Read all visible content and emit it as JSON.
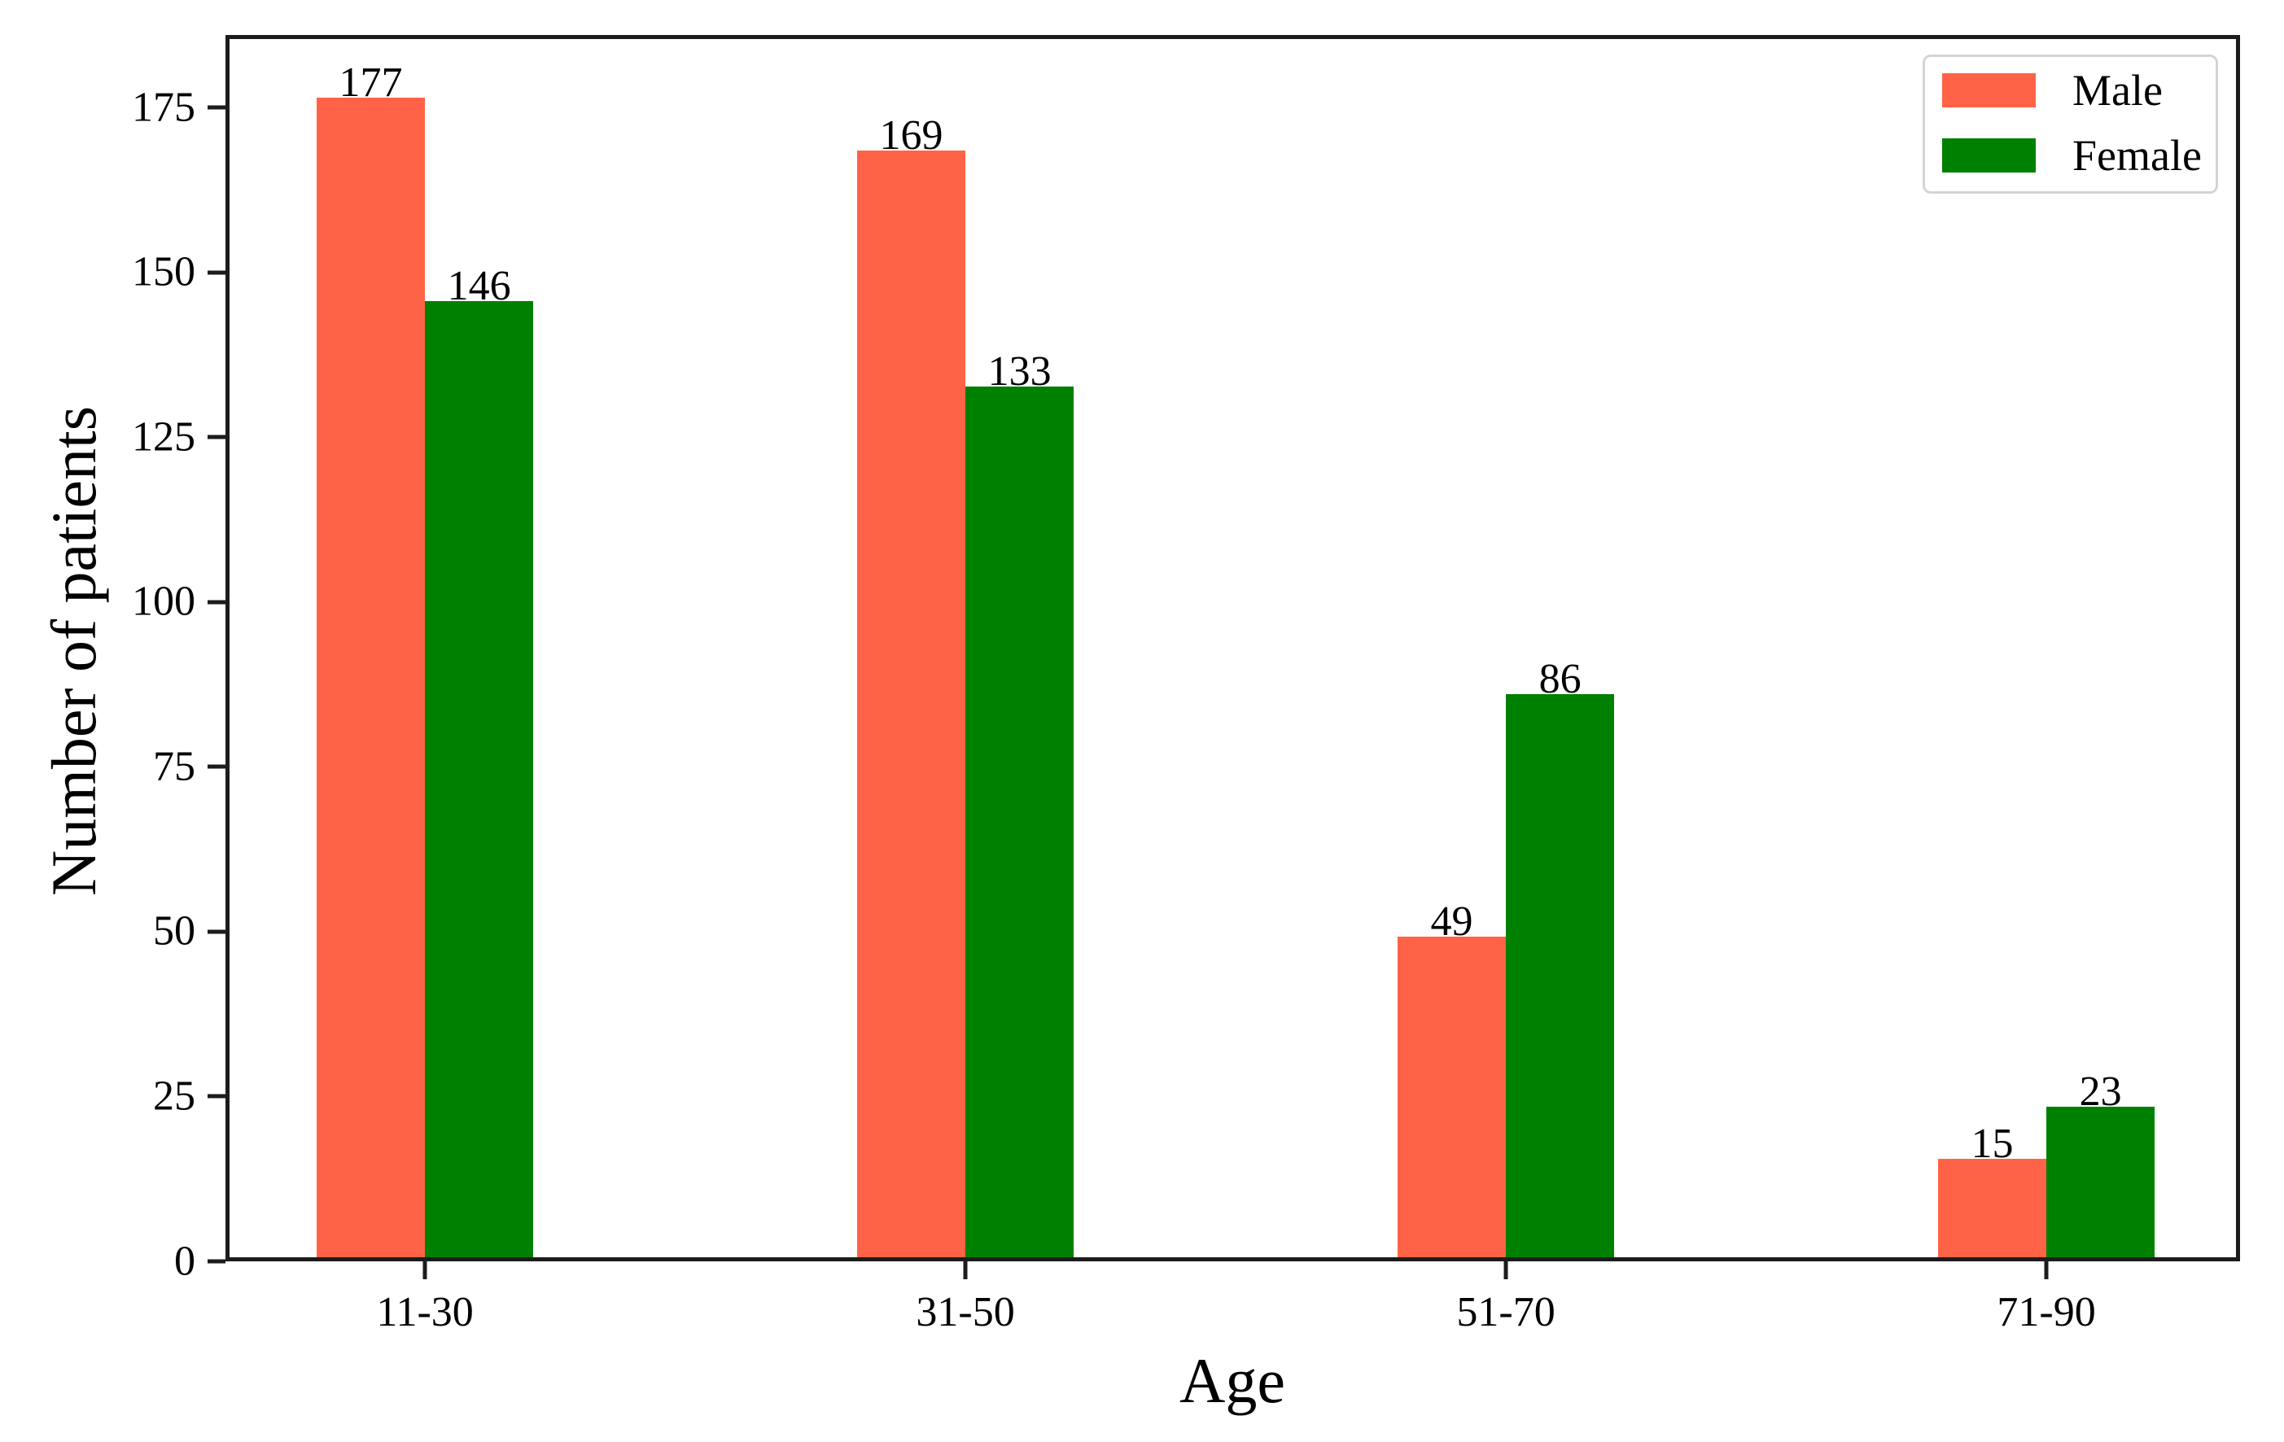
{
  "chart_data": {
    "type": "bar",
    "title": "",
    "xlabel": "Age",
    "ylabel": "Number of patients",
    "categories": [
      "11-30",
      "31-50",
      "51-70",
      "71-90"
    ],
    "series": [
      {
        "name": "Male",
        "color": "#ff6347",
        "values": [
          177,
          169,
          49,
          15
        ]
      },
      {
        "name": "Female",
        "color": "#008000",
        "values": [
          146,
          133,
          86,
          23
        ]
      }
    ],
    "bar_value_labels": [
      [
        "177",
        "169",
        "49",
        "15"
      ],
      [
        "146",
        "133",
        "86",
        "23"
      ]
    ],
    "yticks": [
      0,
      25,
      50,
      75,
      100,
      125,
      150,
      175
    ],
    "ylim": [
      0,
      186
    ],
    "grid": false,
    "legend_position": "upper right",
    "colors": {
      "male": "#ff6347",
      "female": "#008000",
      "spine": "#1c1c1c",
      "text": "#000000",
      "legend_border": "#d4d4d4"
    }
  }
}
